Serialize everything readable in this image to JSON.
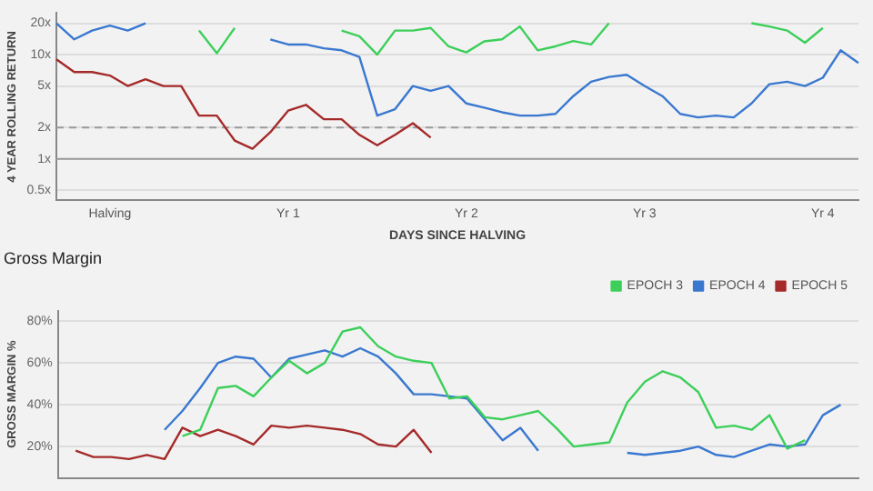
{
  "chart_data": [
    {
      "type": "line",
      "ylabel": "4 YEAR ROLLING RETURN",
      "xlabel": "DAYS SINCE HALVING",
      "log": "y",
      "ylim": [
        0.4,
        25
      ],
      "yticks": [
        {
          "value": 0.5,
          "label": "0.5x"
        },
        {
          "value": 1,
          "label": "1x"
        },
        {
          "value": 2,
          "label": "2x"
        },
        {
          "value": 5,
          "label": "5x"
        },
        {
          "value": 10,
          "label": "10x"
        },
        {
          "value": 20,
          "label": "20x"
        }
      ],
      "categories": [
        null,
        null,
        null,
        "Halving",
        null,
        null,
        null,
        null,
        null,
        null,
        null,
        null,
        null,
        "Yr 1",
        null,
        null,
        null,
        null,
        null,
        null,
        null,
        null,
        null,
        "Yr 2",
        null,
        null,
        null,
        null,
        null,
        null,
        null,
        null,
        null,
        "Yr 3",
        null,
        null,
        null,
        null,
        null,
        null,
        null,
        null,
        null,
        "Yr 4",
        null,
        null
      ],
      "grid": "y",
      "legend": false,
      "marker": "none",
      "line_style": "solid",
      "ref_lines": [
        {
          "axis": "y",
          "value": 1,
          "color": "#9a9a9a",
          "line_style": "solid"
        },
        {
          "axis": "y",
          "value": 2,
          "color": "#9a9a9a",
          "line_style": "dashed"
        }
      ],
      "series": [
        {
          "color": "#3ccf5a",
          "values": [
            null,
            null,
            null,
            null,
            null,
            null,
            null,
            null,
            17,
            10.3,
            18,
            null,
            null,
            null,
            null,
            null,
            17,
            15,
            10,
            17,
            17,
            18,
            12,
            10.5,
            13.4,
            14,
            18.6,
            11,
            12,
            13.5,
            12.5,
            20,
            null,
            null,
            null,
            null,
            null,
            null,
            null,
            20,
            18.6,
            17,
            13,
            18,
            null,
            null
          ]
        },
        {
          "color": "#3a78d0",
          "values": [
            20,
            14,
            17,
            19,
            17,
            20,
            null,
            null,
            null,
            null,
            null,
            null,
            14,
            12.5,
            12.5,
            11.5,
            11,
            9.5,
            2.6,
            3,
            5,
            4.5,
            5,
            3.4,
            3.1,
            2.8,
            2.6,
            2.6,
            2.7,
            4,
            5.5,
            6.1,
            6.4,
            5,
            4,
            2.7,
            2.5,
            2.6,
            2.5,
            3.4,
            5.2,
            5.5,
            5,
            6,
            11,
            8.3
          ]
        },
        {
          "color": "#a52a2a",
          "values": [
            9,
            6.8,
            6.8,
            6.3,
            5,
            5.8,
            5,
            5,
            2.6,
            2.6,
            1.5,
            1.25,
            1.8,
            2.9,
            3.3,
            2.4,
            2.4,
            1.7,
            1.35,
            1.7,
            2.2,
            1.6,
            null,
            null,
            null,
            null,
            null,
            null,
            null,
            null,
            null,
            null,
            null,
            null,
            null,
            null,
            null,
            null,
            null,
            null,
            null,
            null,
            null,
            null,
            null,
            null
          ]
        }
      ]
    },
    {
      "type": "line",
      "title": "Gross Margin",
      "ylabel": "GROSS MARGIN %",
      "ylim": [
        5,
        85
      ],
      "yticks": [
        {
          "value": 20,
          "label": "20%"
        },
        {
          "value": 40,
          "label": "40%"
        },
        {
          "value": 60,
          "label": "60%"
        },
        {
          "value": 80,
          "label": "80%"
        }
      ],
      "categories": [
        null,
        null,
        null,
        null,
        null,
        null,
        null,
        null,
        null,
        null,
        null,
        null,
        null,
        null,
        null,
        null,
        null,
        null,
        null,
        null,
        null,
        null,
        null,
        null,
        null,
        null,
        null,
        null,
        null,
        null,
        null,
        null,
        null,
        null,
        null,
        null,
        null,
        null,
        null,
        null,
        null,
        null,
        null,
        null,
        null,
        null
      ],
      "tick_labels": "y",
      "grid": "y",
      "legend": "top right",
      "marker": "none",
      "line_style": "solid",
      "series": [
        {
          "name": "EPOCH 3",
          "color": "#3ccf5a",
          "values": [
            null,
            null,
            null,
            null,
            null,
            null,
            null,
            25,
            28,
            48,
            49,
            44,
            53,
            61,
            55,
            60,
            75,
            77,
            68,
            63,
            61,
            60,
            43,
            44,
            34,
            33,
            35,
            37,
            29,
            20,
            21,
            22,
            41,
            51,
            56,
            53,
            46,
            29,
            30,
            28,
            35,
            19,
            23,
            null,
            null,
            null
          ]
        },
        {
          "name": "EPOCH 4",
          "color": "#3a78d0",
          "values": [
            null,
            null,
            null,
            null,
            null,
            null,
            28,
            37,
            48,
            60,
            63,
            62,
            53,
            62,
            64,
            66,
            63,
            67,
            63,
            55,
            45,
            45,
            44,
            43,
            33,
            23,
            29,
            18,
            null,
            null,
            null,
            null,
            17,
            16,
            17,
            18,
            20,
            16,
            15,
            18,
            21,
            20,
            21,
            35,
            40,
            null
          ]
        },
        {
          "name": "EPOCH 5",
          "color": "#a52a2a",
          "values": [
            null,
            18,
            15,
            15,
            14,
            16,
            14,
            29,
            25,
            28,
            25,
            21,
            30,
            29,
            30,
            29,
            28,
            26,
            21,
            20,
            28,
            17,
            null,
            null,
            null,
            null,
            null,
            null,
            null,
            null,
            null,
            null,
            null,
            null,
            null,
            null,
            null,
            null,
            null,
            null,
            null,
            null,
            null,
            null,
            null,
            null
          ]
        }
      ]
    }
  ]
}
